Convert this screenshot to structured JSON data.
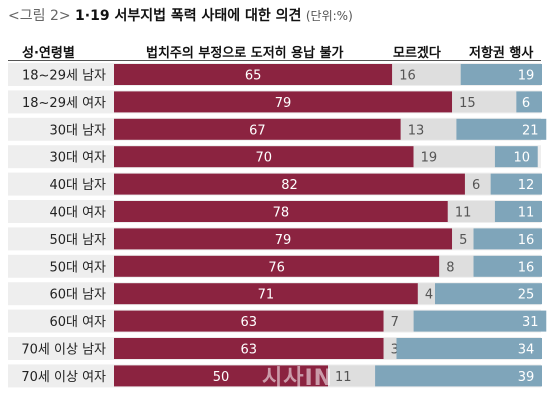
{
  "caption": {
    "label": "<그림 2>",
    "title": "1·19 서부지법 폭력 사태에 대한 의견",
    "unit": "(단위:%)"
  },
  "headers": {
    "group": "성·연령별"
  },
  "watermark": "시사IN",
  "colors": {
    "series0": "#8b2340",
    "series1": "#dedede",
    "series2": "#7fa5ba",
    "row_stripe": "#eeeeee"
  },
  "chart_data": {
    "type": "bar",
    "stacked": true,
    "orientation": "horizontal",
    "unit": "%",
    "categories": [
      "18~29세 남자",
      "18~29세 여자",
      "30대 남자",
      "30대 여자",
      "40대 남자",
      "40대 여자",
      "50대 남자",
      "50대 여자",
      "60대 남자",
      "60대 여자",
      "70세 이상 남자",
      "70세 이상 여자"
    ],
    "series": [
      {
        "name": "법치주의 부정으로 도저히 용납 불가",
        "values": [
          65,
          79,
          67,
          70,
          82,
          78,
          79,
          76,
          71,
          63,
          63,
          50
        ]
      },
      {
        "name": "모르겠다",
        "values": [
          16,
          15,
          13,
          19,
          6,
          11,
          5,
          8,
          4,
          7,
          3,
          11
        ]
      },
      {
        "name": "저항권 행사",
        "values": [
          19,
          6,
          21,
          10,
          12,
          11,
          16,
          16,
          25,
          31,
          34,
          39
        ]
      }
    ]
  }
}
